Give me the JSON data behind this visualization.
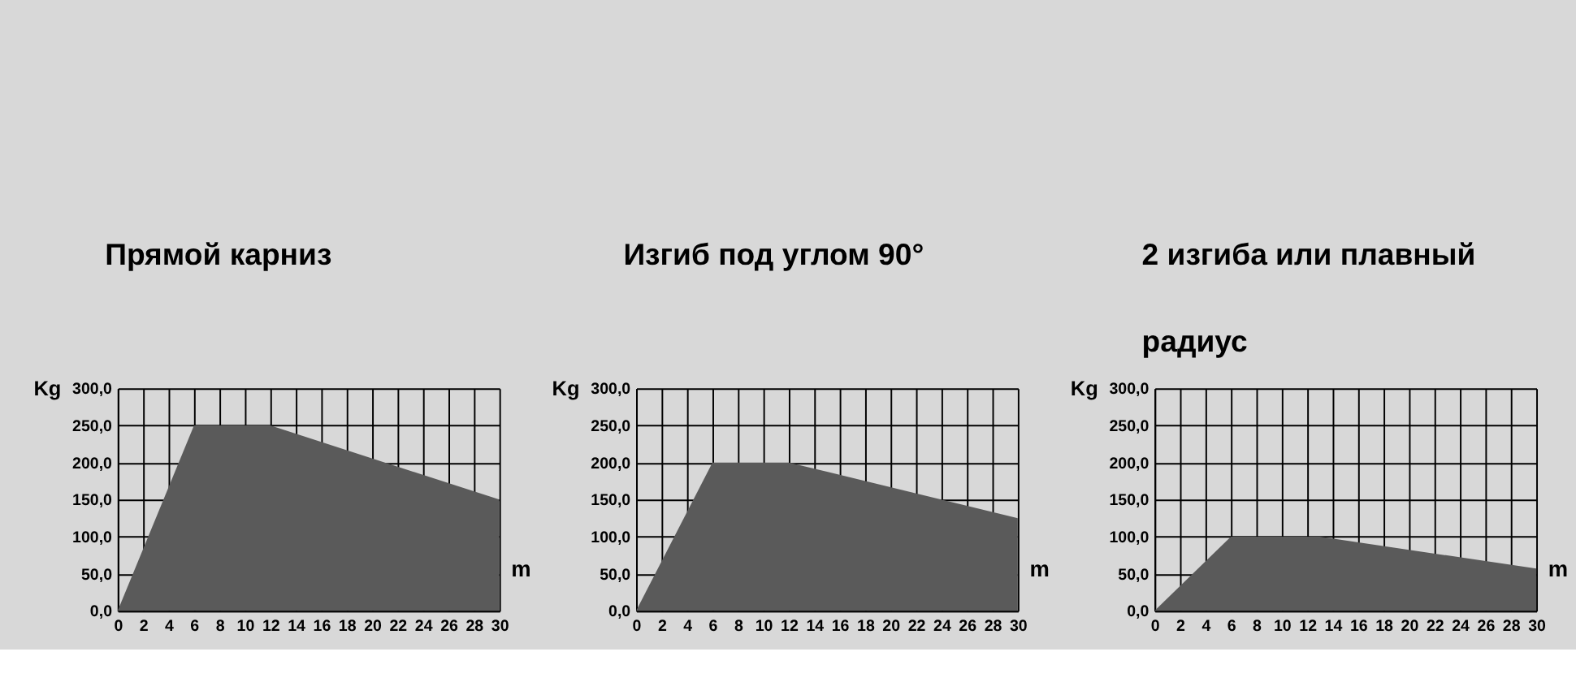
{
  "chart_data": [
    {
      "type": "area",
      "title": "Прямой карниз",
      "xlabel": "m",
      "ylabel": "Kg",
      "x": [
        0,
        6,
        12,
        30
      ],
      "values": [
        0,
        250,
        250,
        150
      ],
      "color": "#5a5a5a",
      "xlim": [
        0,
        30
      ],
      "ylim": [
        0,
        300
      ],
      "xticks": [
        0,
        2,
        4,
        6,
        8,
        10,
        12,
        14,
        16,
        18,
        20,
        22,
        24,
        26,
        28,
        30
      ],
      "yticks": [
        {
          "value": 0,
          "label": "0,0"
        },
        {
          "value": 50,
          "label": "50,0"
        },
        {
          "value": 100,
          "label": "100,0"
        },
        {
          "value": 150,
          "label": "150,0"
        },
        {
          "value": 200,
          "label": "200,0"
        },
        {
          "value": 250,
          "label": "250,0"
        },
        {
          "value": 300,
          "label": "300,0"
        }
      ],
      "grid": true
    },
    {
      "type": "area",
      "title": "Изгиб под углом 90°",
      "xlabel": "m",
      "ylabel": "Kg",
      "x": [
        0,
        6,
        12,
        30
      ],
      "values": [
        0,
        200,
        200,
        125
      ],
      "color": "#5a5a5a",
      "xlim": [
        0,
        30
      ],
      "ylim": [
        0,
        300
      ],
      "xticks": [
        0,
        2,
        4,
        6,
        8,
        10,
        12,
        14,
        16,
        18,
        20,
        22,
        24,
        26,
        28,
        30
      ],
      "yticks": [
        {
          "value": 0,
          "label": "0,0"
        },
        {
          "value": 50,
          "label": "50,0"
        },
        {
          "value": 100,
          "label": "100,0"
        },
        {
          "value": 150,
          "label": "150,0"
        },
        {
          "value": 200,
          "label": "200,0"
        },
        {
          "value": 250,
          "label": "250,0"
        },
        {
          "value": 300,
          "label": "300,0"
        }
      ],
      "grid": true
    },
    {
      "type": "area",
      "title": "2 изгиба или плавный\nрадиус",
      "xlabel": "m",
      "ylabel": "Kg",
      "x": [
        0,
        6,
        13,
        30
      ],
      "values": [
        0,
        100,
        100,
        57
      ],
      "color": "#5a5a5a",
      "xlim": [
        0,
        30
      ],
      "ylim": [
        0,
        300
      ],
      "xticks": [
        0,
        2,
        4,
        6,
        8,
        10,
        12,
        14,
        16,
        18,
        20,
        22,
        24,
        26,
        28,
        30
      ],
      "yticks": [
        {
          "value": 0,
          "label": "0,0"
        },
        {
          "value": 50,
          "label": "50,0"
        },
        {
          "value": 100,
          "label": "100,0"
        },
        {
          "value": 150,
          "label": "150,0"
        },
        {
          "value": 200,
          "label": "200,0"
        },
        {
          "value": 250,
          "label": "250,0"
        },
        {
          "value": 300,
          "label": "300,0"
        }
      ],
      "grid": true
    }
  ]
}
